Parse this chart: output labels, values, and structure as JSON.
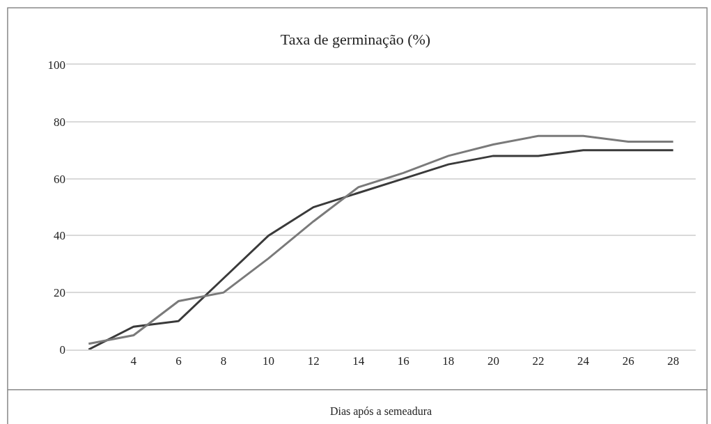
{
  "chart_data": {
    "type": "line",
    "title": "Taxa de germinação (%)",
    "xlabel": "Dias após a semeadura",
    "categories": [
      null,
      "4",
      "6",
      "8",
      "10",
      "12",
      "14",
      "16",
      "18",
      "20",
      "22",
      "24",
      "26",
      "28"
    ],
    "series": [
      {
        "color": "#3a3a3a",
        "values": [
          0,
          8,
          10,
          25,
          40,
          50,
          55,
          60,
          65,
          68,
          68,
          70,
          70,
          70
        ]
      },
      {
        "color": "#7a7a7a",
        "values": [
          2,
          5,
          17,
          20,
          32,
          45,
          57,
          62,
          68,
          72,
          75,
          75,
          73,
          73
        ]
      }
    ],
    "ylim": [
      0,
      100
    ],
    "yticks": [
      0,
      20,
      40,
      60,
      80,
      100
    ],
    "grid": "y",
    "marker": "none",
    "line_style": "solid"
  }
}
